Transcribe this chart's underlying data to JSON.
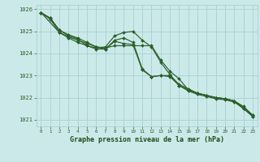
{
  "xlabel": "Graphe pression niveau de la mer (hPa)",
  "xlim": [
    -0.5,
    23.5
  ],
  "ylim": [
    1020.7,
    1026.2
  ],
  "yticks": [
    1021,
    1022,
    1023,
    1024,
    1025,
    1026
  ],
  "xticks": [
    0,
    1,
    2,
    3,
    4,
    5,
    6,
    7,
    8,
    9,
    10,
    11,
    12,
    13,
    14,
    15,
    16,
    17,
    18,
    19,
    20,
    21,
    22,
    23
  ],
  "background_color": "#cce9e9",
  "grid_color": "#aad4d4",
  "line_color": "#2a5f2a",
  "tick_color": "#2a5f2a",
  "xlabel_color": "#1a4a1a",
  "xlabel_fontsize": 6.5,
  "series": [
    {
      "x": [
        0,
        1,
        2,
        3,
        4,
        5,
        6,
        7,
        8,
        9,
        10,
        11,
        12,
        13,
        14,
        15,
        16,
        17,
        18,
        19,
        20,
        21,
        22,
        23
      ],
      "y": [
        1025.85,
        1025.6,
        1025.05,
        1024.85,
        1024.7,
        1024.5,
        1024.3,
        1024.25,
        1024.35,
        1024.35,
        1024.35,
        1024.35,
        1024.35,
        1023.7,
        1023.2,
        1022.85,
        1022.35,
        1022.2,
        1022.1,
        1022.0,
        1021.95,
        1021.85,
        1021.6,
        1021.2
      ],
      "marker": true
    },
    {
      "x": [
        0,
        1,
        2,
        3,
        4,
        5,
        6,
        7,
        8,
        9,
        10,
        11,
        12,
        13,
        14,
        15,
        16,
        17,
        18,
        19,
        20,
        21,
        22,
        23
      ],
      "y": [
        1025.85,
        1025.6,
        1025.05,
        1024.8,
        1024.65,
        1024.35,
        1024.25,
        1024.3,
        1024.8,
        1024.95,
        1025.0,
        1024.6,
        1024.3,
        1023.6,
        1023.05,
        1022.55,
        1022.35,
        1022.2,
        1022.1,
        1022.0,
        1021.95,
        1021.85,
        1021.55,
        1021.2
      ],
      "marker": true
    },
    {
      "x": [
        0,
        2,
        3,
        4,
        5,
        6,
        7,
        8,
        9,
        10,
        11,
        12,
        13,
        14,
        15,
        16,
        17,
        18,
        19,
        20,
        21,
        22,
        23
      ],
      "y": [
        1025.85,
        1024.95,
        1024.75,
        1024.6,
        1024.45,
        1024.3,
        1024.2,
        1024.6,
        1024.7,
        1024.5,
        1023.3,
        1022.95,
        1023.0,
        1023.0,
        1022.6,
        1022.4,
        1022.2,
        1022.1,
        1022.0,
        1021.95,
        1021.85,
        1021.5,
        1021.15
      ],
      "marker": true
    },
    {
      "x": [
        0,
        1,
        2,
        3,
        4,
        5,
        6,
        7,
        8,
        9,
        10,
        11,
        12,
        13,
        14,
        15,
        16,
        17,
        18,
        19,
        20,
        21,
        22,
        23
      ],
      "y": [
        1025.85,
        1025.55,
        1024.95,
        1024.7,
        1024.5,
        1024.35,
        1024.2,
        1024.2,
        1024.55,
        1024.45,
        1024.4,
        1023.25,
        1022.95,
        1023.0,
        1022.95,
        1022.55,
        1022.3,
        1022.15,
        1022.05,
        1021.95,
        1021.9,
        1021.8,
        1021.5,
        1021.15
      ],
      "marker": true
    }
  ]
}
